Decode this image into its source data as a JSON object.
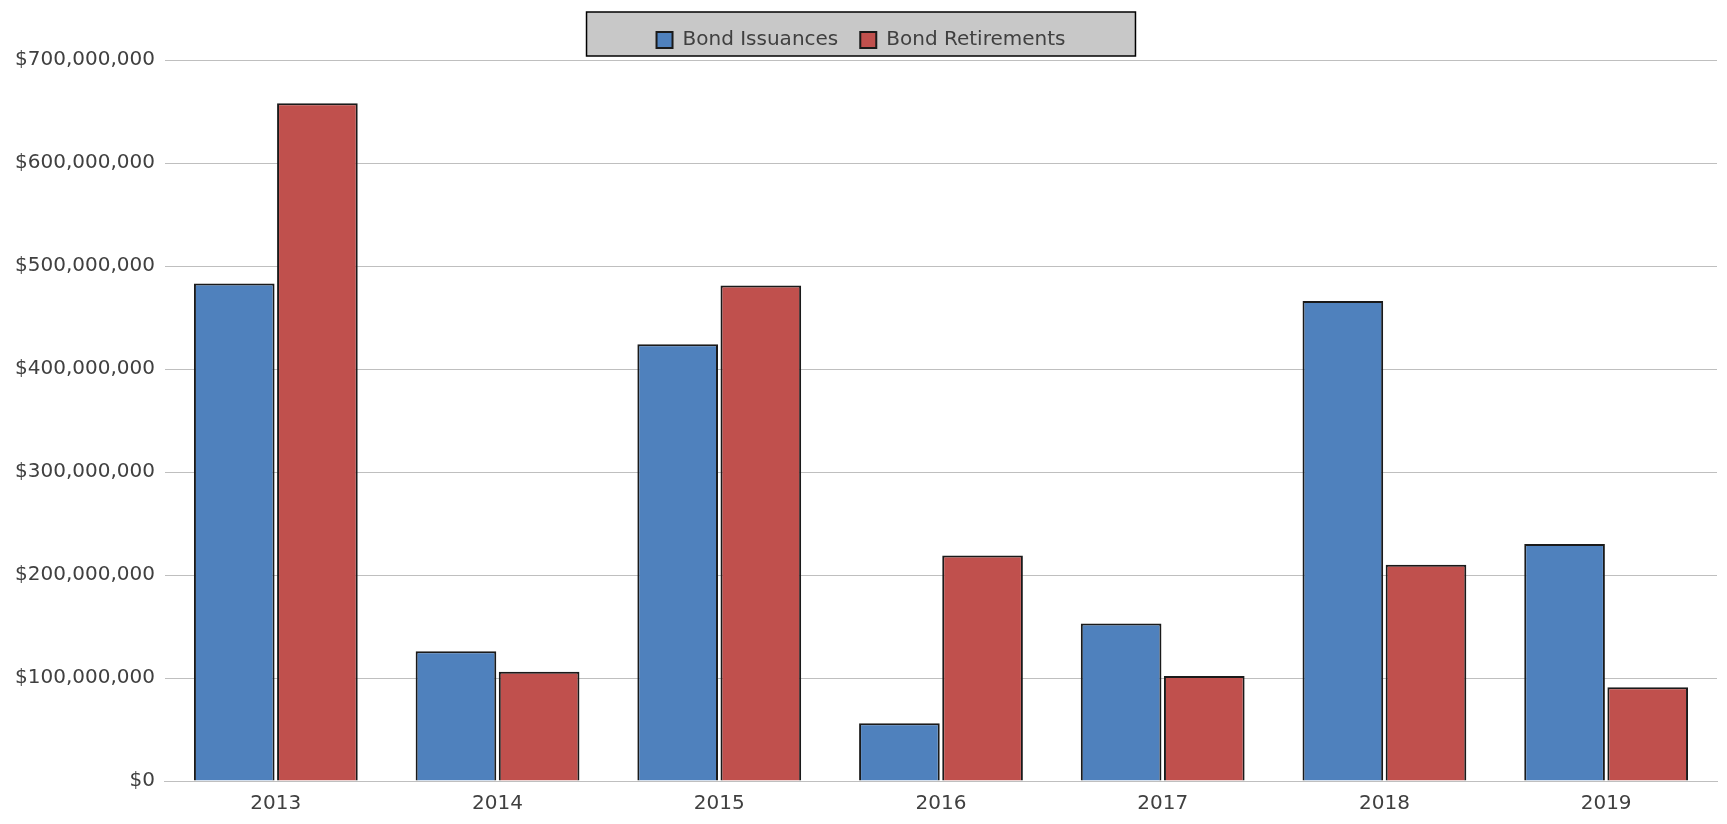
{
  "chart_data": {
    "type": "bar",
    "categories": [
      "2013",
      "2014",
      "2015",
      "2016",
      "2017",
      "2018",
      "2019"
    ],
    "series": [
      {
        "name": "Bond Issuances",
        "color": "#4f81bd",
        "values": [
          483000000,
          126000000,
          424000000,
          56000000,
          153000000,
          466000000,
          230000000
        ]
      },
      {
        "name": "Bond Retirements",
        "color": "#c0504d",
        "values": [
          658000000,
          106000000,
          481000000,
          219000000,
          102000000,
          210000000,
          91000000
        ]
      }
    ],
    "ylim": [
      0,
      700000000
    ],
    "yticks": [
      {
        "value": 0,
        "label": "$0"
      },
      {
        "value": 100000000,
        "label": "$100,000,000"
      },
      {
        "value": 200000000,
        "label": "$200,000,000"
      },
      {
        "value": 300000000,
        "label": "$300,000,000"
      },
      {
        "value": 400000000,
        "label": "$400,000,000"
      },
      {
        "value": 500000000,
        "label": "$500,000,000"
      },
      {
        "value": 600000000,
        "label": "$600,000,000"
      },
      {
        "value": 700000000,
        "label": "$700,000,000"
      }
    ],
    "grid": "y",
    "legend": "top"
  }
}
